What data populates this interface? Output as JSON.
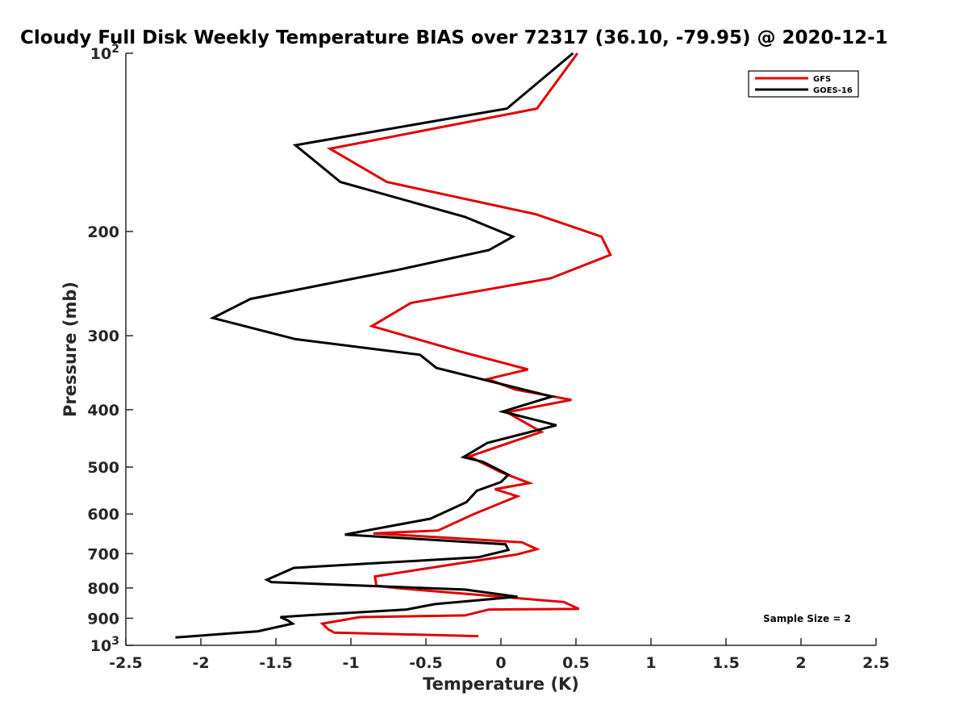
{
  "chart_data": {
    "type": "line",
    "title": "Cloudy Full Disk Weekly Temperature BIAS over 72317 (36.10, -79.95) @ 2020-12-1",
    "xlabel": "Temperature (K)",
    "ylabel": "Pressure (mb)",
    "xlim": [
      -2.5,
      2.5
    ],
    "ylim": [
      100,
      1000
    ],
    "y_scale": "log",
    "y_reversed": true,
    "grid": false,
    "legend_position": "top-right",
    "x_ticks": [
      {
        "value": -2.5,
        "label": "-2.5"
      },
      {
        "value": -2,
        "label": "-2"
      },
      {
        "value": -1.5,
        "label": "-1.5"
      },
      {
        "value": -1,
        "label": "-1"
      },
      {
        "value": -0.5,
        "label": "-0.5"
      },
      {
        "value": 0,
        "label": "0"
      },
      {
        "value": 0.5,
        "label": "0.5"
      },
      {
        "value": 1,
        "label": "1"
      },
      {
        "value": 1.5,
        "label": "1.5"
      },
      {
        "value": 2,
        "label": "2"
      },
      {
        "value": 2.5,
        "label": "2.5"
      }
    ],
    "y_ticks": [
      {
        "value": 100,
        "label": "10",
        "sup": "2"
      },
      {
        "value": 200,
        "label": "200",
        "sup": ""
      },
      {
        "value": 300,
        "label": "300",
        "sup": ""
      },
      {
        "value": 400,
        "label": "400",
        "sup": ""
      },
      {
        "value": 500,
        "label": "500",
        "sup": ""
      },
      {
        "value": 600,
        "label": "600",
        "sup": ""
      },
      {
        "value": 700,
        "label": "700",
        "sup": ""
      },
      {
        "value": 800,
        "label": "800",
        "sup": ""
      },
      {
        "value": 900,
        "label": "900",
        "sup": ""
      },
      {
        "value": 1000,
        "label": "10",
        "sup": "3"
      }
    ],
    "series": [
      {
        "name": "GFS",
        "color": "#e00000",
        "x": [
          0.51,
          0.24,
          -1.14,
          -0.76,
          0.23,
          0.67,
          0.73,
          0.33,
          -0.6,
          -0.86,
          -0.25,
          0.18,
          -0.09,
          0.1,
          0.47,
          0.04,
          0.27,
          -0.14,
          -0.21,
          0.0,
          0.19,
          -0.04,
          0.11,
          -0.18,
          -0.42,
          -0.85,
          0.14,
          0.24,
          0.11,
          -0.84,
          -0.83,
          -0.7,
          0.42,
          0.52,
          -0.08,
          -0.24,
          -0.94,
          -1.19,
          -1.15,
          -1.11,
          -0.15
        ],
        "y": [
          100,
          124,
          145,
          165,
          187,
          204,
          219,
          240,
          264,
          289,
          320,
          342,
          355,
          370,
          385,
          404,
          436,
          473,
          480,
          510,
          532,
          545,
          560,
          600,
          640,
          647,
          670,
          688,
          702,
          765,
          793,
          800,
          845,
          868,
          870,
          890,
          896,
          919,
          940,
          952,
          965
        ]
      },
      {
        "name": "GOES-16",
        "color": "#000000",
        "x": [
          0.48,
          0.04,
          -1.37,
          -1.07,
          -0.24,
          0.08,
          -0.08,
          -0.68,
          -1.67,
          -1.92,
          -1.37,
          -0.54,
          -0.43,
          0.34,
          0.01,
          0.37,
          -0.09,
          -0.25,
          -0.12,
          0.05,
          0.0,
          -0.16,
          -0.23,
          -0.47,
          -1.04,
          0.03,
          0.05,
          -0.15,
          -1.38,
          -1.56,
          -1.53,
          -0.24,
          0.11,
          -0.44,
          -0.63,
          -1.33,
          -1.47,
          -1.42,
          -1.39,
          -1.62,
          -2.17
        ],
        "y": [
          100,
          124,
          143,
          165,
          189,
          204,
          215,
          232,
          260,
          280,
          304,
          323,
          340,
          380,
          403,
          425,
          455,
          481,
          490,
          515,
          530,
          548,
          573,
          611,
          650,
          675,
          690,
          710,
          740,
          775,
          782,
          805,
          828,
          852,
          870,
          891,
          896,
          908,
          919,
          947,
          970
        ]
      }
    ],
    "annotation": "Sample Size = 2"
  }
}
